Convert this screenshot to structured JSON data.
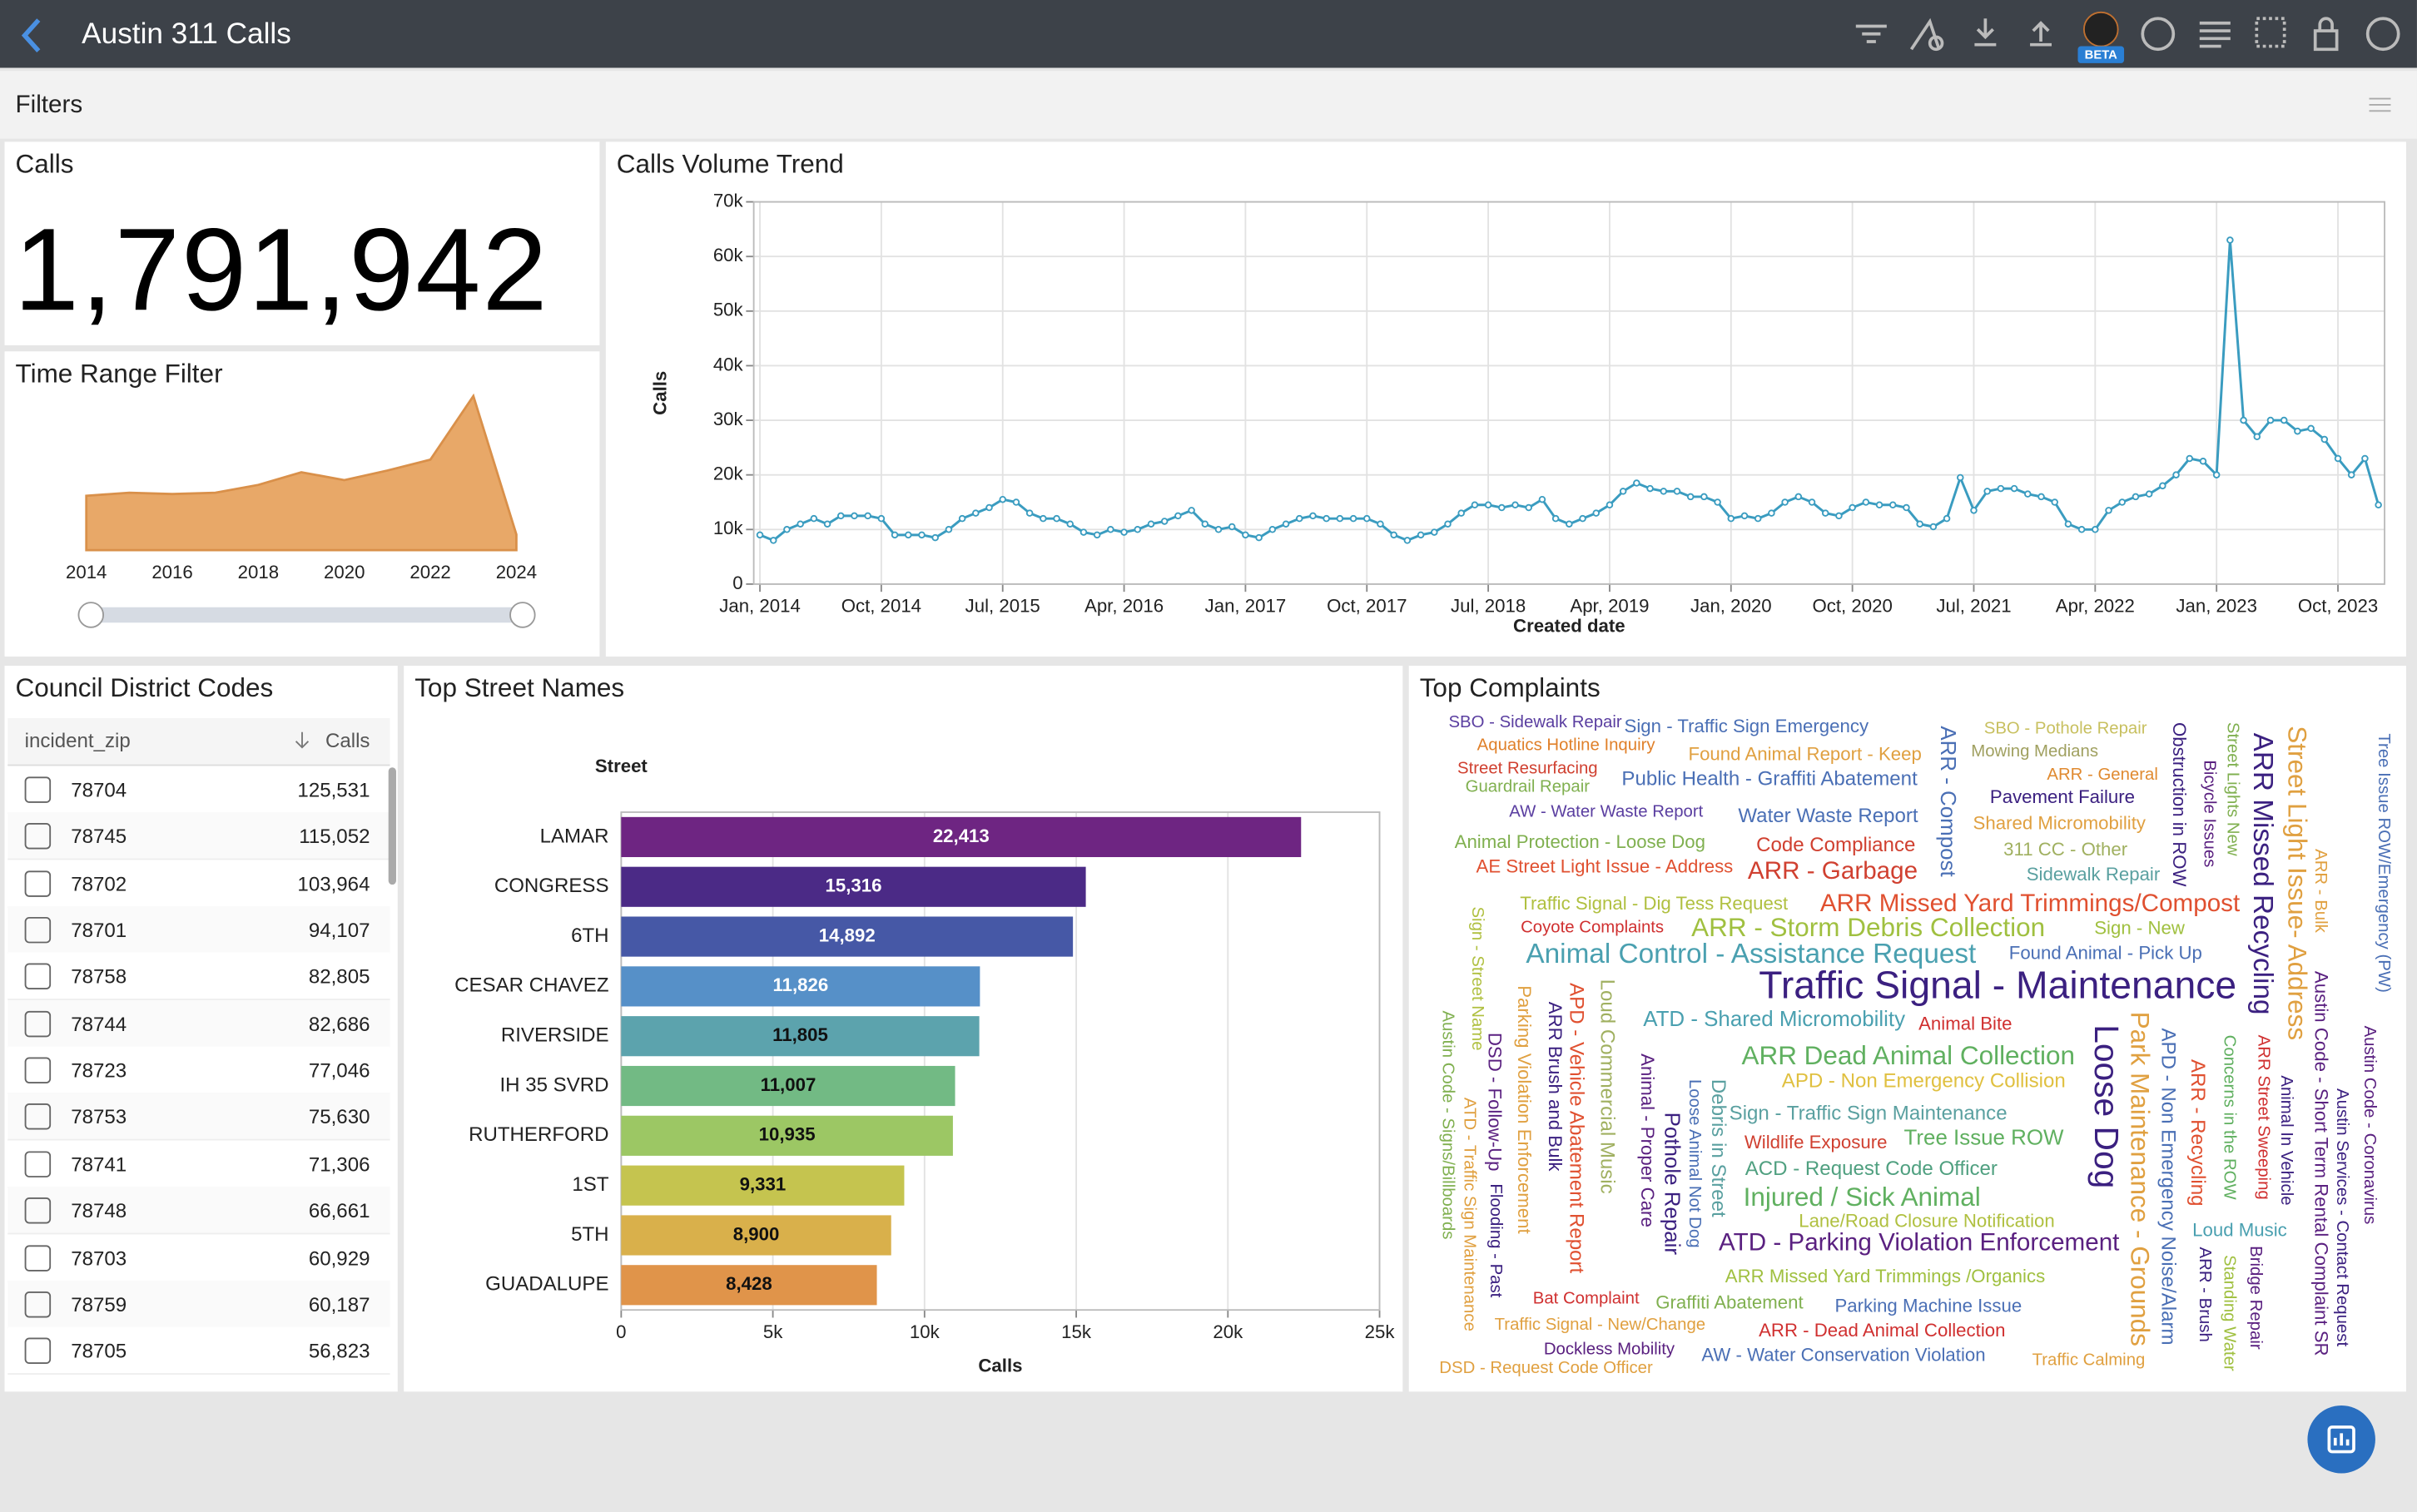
{
  "header": {
    "title": "Austin 311 Calls",
    "badge": "BETA"
  },
  "filters": {
    "title": "Filters"
  },
  "kpi": {
    "title": "Calls",
    "value": "1,791,942"
  },
  "table": {
    "title": "Council District Codes",
    "columns": [
      "incident_zip",
      "Calls"
    ],
    "rows": [
      [
        "78704",
        "125,531"
      ],
      [
        "78745",
        "115,052"
      ],
      [
        "78702",
        "103,964"
      ],
      [
        "78701",
        "94,107"
      ],
      [
        "78758",
        "82,805"
      ],
      [
        "78744",
        "82,686"
      ],
      [
        "78723",
        "77,046"
      ],
      [
        "78753",
        "75,630"
      ],
      [
        "78741",
        "71,306"
      ],
      [
        "78748",
        "66,661"
      ],
      [
        "78703",
        "60,929"
      ],
      [
        "78759",
        "60,187"
      ],
      [
        "78705",
        "56,823"
      ]
    ]
  },
  "chart_data": [
    {
      "type": "area",
      "title": "Time Range Filter",
      "color": "#e8a868",
      "x": [
        2014,
        2015,
        2016,
        2017,
        2018,
        2019,
        2020,
        2021,
        2022,
        2023,
        2024
      ],
      "values": [
        125000,
        132000,
        129000,
        132000,
        150000,
        179000,
        161000,
        183000,
        208000,
        354000,
        36000
      ],
      "xlim": [
        2014,
        2024
      ],
      "xticks": [
        2014,
        2016,
        2018,
        2020,
        2022,
        2024
      ]
    },
    {
      "type": "line",
      "title": "Calls Volume Trend",
      "x_label": "Created date",
      "y_label": "Calls",
      "color": "#3a9cc0",
      "grid": true,
      "x": [
        "2014-01",
        "2014-02",
        "2014-03",
        "2014-04",
        "2014-05",
        "2014-06",
        "2014-07",
        "2014-08",
        "2014-09",
        "2014-10",
        "2014-11",
        "2014-12",
        "2015-01",
        "2015-02",
        "2015-03",
        "2015-04",
        "2015-05",
        "2015-06",
        "2015-07",
        "2015-08",
        "2015-09",
        "2015-10",
        "2015-11",
        "2015-12",
        "2016-01",
        "2016-02",
        "2016-03",
        "2016-04",
        "2016-05",
        "2016-06",
        "2016-07",
        "2016-08",
        "2016-09",
        "2016-10",
        "2016-11",
        "2016-12",
        "2017-01",
        "2017-02",
        "2017-03",
        "2017-04",
        "2017-05",
        "2017-06",
        "2017-07",
        "2017-08",
        "2017-09",
        "2017-10",
        "2017-11",
        "2017-12",
        "2018-01",
        "2018-02",
        "2018-03",
        "2018-04",
        "2018-05",
        "2018-06",
        "2018-07",
        "2018-08",
        "2018-09",
        "2018-10",
        "2018-11",
        "2018-12",
        "2019-01",
        "2019-02",
        "2019-03",
        "2019-04",
        "2019-05",
        "2019-06",
        "2019-07",
        "2019-08",
        "2019-09",
        "2019-10",
        "2019-11",
        "2019-12",
        "2020-01",
        "2020-02",
        "2020-03",
        "2020-04",
        "2020-05",
        "2020-06",
        "2020-07",
        "2020-08",
        "2020-09",
        "2020-10",
        "2020-11",
        "2020-12",
        "2021-01",
        "2021-02",
        "2021-03",
        "2021-04",
        "2021-05",
        "2021-06",
        "2021-07",
        "2021-08",
        "2021-09",
        "2021-10",
        "2021-11",
        "2021-12",
        "2022-01",
        "2022-02",
        "2022-03",
        "2022-04",
        "2022-05",
        "2022-06",
        "2022-07",
        "2022-08",
        "2022-09",
        "2022-10",
        "2022-11",
        "2022-12",
        "2023-01",
        "2023-02",
        "2023-03",
        "2023-04",
        "2023-05",
        "2023-06",
        "2023-07",
        "2023-08",
        "2023-09",
        "2023-10",
        "2023-11",
        "2023-12",
        "2024-01"
      ],
      "values": [
        9000,
        8000,
        10000,
        11000,
        12000,
        11000,
        12500,
        12500,
        12500,
        12000,
        9000,
        9000,
        9000,
        8500,
        10000,
        12000,
        13000,
        14000,
        15500,
        15000,
        13000,
        12000,
        12000,
        11000,
        9500,
        9000,
        10000,
        9500,
        10000,
        11000,
        11500,
        12500,
        13500,
        11000,
        10000,
        10500,
        9000,
        8500,
        10000,
        11000,
        12000,
        12500,
        12000,
        12000,
        12000,
        12000,
        11000,
        9000,
        8000,
        9000,
        9500,
        11000,
        13000,
        14500,
        14500,
        14000,
        14500,
        14000,
        15500,
        12000,
        11000,
        12000,
        13000,
        14500,
        17000,
        18500,
        17500,
        17000,
        17000,
        16000,
        16000,
        15000,
        12000,
        12500,
        12000,
        13000,
        15000,
        16000,
        15000,
        13000,
        12500,
        14000,
        15000,
        14500,
        14500,
        14000,
        11000,
        10500,
        12000,
        19500,
        13500,
        17000,
        17500,
        17500,
        16500,
        16000,
        15000,
        11000,
        10000,
        10000,
        13500,
        15000,
        16000,
        16500,
        18000,
        20000,
        23000,
        22500,
        20000,
        63000,
        30000,
        27000,
        30000,
        30000,
        28000,
        28500,
        26500,
        23000,
        20000,
        23000,
        14500
      ],
      "ylim": [
        0,
        70000
      ],
      "yticks": [
        0,
        {
          "value": 10000,
          "label": "10k"
        },
        {
          "value": 20000,
          "label": "20k"
        },
        {
          "value": 30000,
          "label": "30k"
        },
        {
          "value": 40000,
          "label": "40k"
        },
        {
          "value": 50000,
          "label": "50k"
        },
        {
          "value": 60000,
          "label": "60k"
        },
        {
          "value": 70000,
          "label": "70k"
        }
      ],
      "xticks": [
        {
          "value": "2014-01",
          "label": "Jan, 2014"
        },
        {
          "value": "2014-10",
          "label": "Oct, 2014"
        },
        {
          "value": "2015-07",
          "label": "Jul, 2015"
        },
        {
          "value": "2016-04",
          "label": "Apr, 2016"
        },
        {
          "value": "2017-01",
          "label": "Jan, 2017"
        },
        {
          "value": "2017-10",
          "label": "Oct, 2017"
        },
        {
          "value": "2018-07",
          "label": "Jul, 2018"
        },
        {
          "value": "2019-04",
          "label": "Apr, 2019"
        },
        {
          "value": "2020-01",
          "label": "Jan, 2020"
        },
        {
          "value": "2020-10",
          "label": "Oct, 2020"
        },
        {
          "value": "2021-07",
          "label": "Jul, 2021"
        },
        {
          "value": "2022-04",
          "label": "Apr, 2022"
        },
        {
          "value": "2023-01",
          "label": "Jan, 2023"
        },
        {
          "value": "2023-10",
          "label": "Oct, 2023"
        }
      ]
    },
    {
      "type": "bar",
      "title": "Top Street Names",
      "y_label": "Street",
      "x_label": "Calls",
      "grid": true,
      "categories": [
        "LAMAR",
        "CONGRESS",
        "6TH",
        "CESAR CHAVEZ",
        "RIVERSIDE",
        "IH 35 SVRD",
        "RUTHERFORD",
        "1ST",
        "5TH",
        "GUADALUPE"
      ],
      "values": [
        22413,
        15316,
        14892,
        11826,
        11805,
        11007,
        10935,
        9331,
        8900,
        8428
      ],
      "value_labels": [
        "22,413",
        "15,316",
        "14,892",
        "11,826",
        "11,805",
        "11,007",
        "10,935",
        "9,331",
        "8,900",
        "8,428"
      ],
      "colors": [
        "#6e2582",
        "#4b2a86",
        "#4658a6",
        "#5690c8",
        "#5ca3ad",
        "#72ba84",
        "#9cc764",
        "#c5c44f",
        "#d9b04b",
        "#e0944a"
      ],
      "xlim": [
        0,
        25000
      ],
      "xticks": [
        0,
        {
          "value": 5000,
          "label": "5k"
        },
        {
          "value": 10000,
          "label": "10k"
        },
        {
          "value": 15000,
          "label": "15k"
        },
        {
          "value": 20000,
          "label": "20k"
        },
        {
          "value": 25000,
          "label": "25k"
        }
      ]
    }
  ],
  "word_cloud": {
    "title": "Top Complaints",
    "words": [
      {
        "text": "SBO - Sidewalk Repair",
        "color": "#5a3ea0"
      },
      {
        "text": "Sign - Traffic Sign Emergency",
        "color": "#4a6fb5"
      },
      {
        "text": "SBO - Pothole Repair",
        "color": "#c8c060"
      },
      {
        "text": "Aquatics Hotline Inquiry",
        "color": "#e0802a"
      },
      {
        "text": "Found Animal Report - Keep",
        "color": "#e0a040"
      },
      {
        "text": "Mowing Medians",
        "color": "#a0a060"
      },
      {
        "text": "Street Resurfacing",
        "color": "#d04030"
      },
      {
        "text": "Public Health - Graffiti Abatement",
        "color": "#4a6fb5"
      },
      {
        "text": "ARR - General",
        "color": "#e08a30"
      },
      {
        "text": "Guardrail Repair",
        "color": "#80b050"
      },
      {
        "text": "Pavement Failure",
        "color": "#3b2080"
      },
      {
        "text": "AW - Water Waste Report",
        "color": "#5a3ea0"
      },
      {
        "text": "Water Waste Report",
        "color": "#4a6fb5"
      },
      {
        "text": "Shared Micromobility",
        "color": "#e0a040"
      },
      {
        "text": "Animal Protection - Loose Dog",
        "color": "#80b050"
      },
      {
        "text": "Code Compliance",
        "color": "#d04030"
      },
      {
        "text": "311 CC - Other",
        "color": "#a0b060"
      },
      {
        "text": "AE Street Light Issue - Address",
        "color": "#e05030"
      },
      {
        "text": "ARR - Garbage",
        "color": "#d04030"
      },
      {
        "text": "Sidewalk Repair",
        "color": "#5aa0a0"
      },
      {
        "text": "Traffic Signal - Dig Tess Request",
        "color": "#b0c040"
      },
      {
        "text": "ARR Missed Yard Trimmings/Compost",
        "color": "#e05030"
      },
      {
        "text": "Coyote Complaints",
        "color": "#d03030"
      },
      {
        "text": "ARR - Storm Debris Collection",
        "color": "#a0c040"
      },
      {
        "text": "Sign - New",
        "color": "#a0c040"
      },
      {
        "text": "Animal Control - Assistance Request",
        "color": "#4aa0b0"
      },
      {
        "text": "Found Animal - Pick Up",
        "color": "#4a6fb5"
      },
      {
        "text": "Traffic Signal - Maintenance",
        "color": "#3b2080"
      },
      {
        "text": "ATD - Shared Micromobility",
        "color": "#4aa0b0"
      },
      {
        "text": "Animal Bite",
        "color": "#d03030"
      },
      {
        "text": "ARR Dead Animal Collection",
        "color": "#60b060"
      },
      {
        "text": "APD - Non Emergency Collision",
        "color": "#e0c040"
      },
      {
        "text": "Sign - Traffic Sign Maintenance",
        "color": "#5aa0a0"
      },
      {
        "text": "Wildlife Exposure",
        "color": "#d04030"
      },
      {
        "text": "Tree Issue ROW",
        "color": "#60b060"
      },
      {
        "text": "ACD - Request Code Officer",
        "color": "#50a080"
      },
      {
        "text": "Injured / Sick Animal",
        "color": "#60b060"
      },
      {
        "text": "Lane/Road Closure Notification",
        "color": "#b0c040"
      },
      {
        "text": "ATD - Parking Violation Enforcement",
        "color": "#5a2080"
      },
      {
        "text": "Loud Music",
        "color": "#4aa0b0"
      },
      {
        "text": "ARR Missed Yard Trimmings /Organics",
        "color": "#a0c040"
      },
      {
        "text": "Bat Complaint",
        "color": "#d03030"
      },
      {
        "text": "Graffiti Abatement",
        "color": "#80b050"
      },
      {
        "text": "Parking Machine Issue",
        "color": "#4a6fb5"
      },
      {
        "text": "Traffic Signal - New/Change",
        "color": "#e0a040"
      },
      {
        "text": "ARR - Dead Animal Collection",
        "color": "#d03030"
      },
      {
        "text": "Dockless Mobility",
        "color": "#5a2080"
      },
      {
        "text": "AW - Water Conservation Violation",
        "color": "#4a6fb5"
      },
      {
        "text": "DSD - Request Code Officer",
        "color": "#e0a040"
      },
      {
        "text": "Traffic Calming",
        "color": "#e0a040"
      },
      {
        "text": "ARR - Compost",
        "color": "#4a6fb5"
      },
      {
        "text": "Obstruction in ROW",
        "color": "#3b2080"
      },
      {
        "text": "Street Lights New",
        "color": "#80b050"
      },
      {
        "text": "Bicycle Issues",
        "color": "#5a2080"
      },
      {
        "text": "ARR Missed Recycling",
        "color": "#3b2080"
      },
      {
        "text": "Street Light Issue- Address",
        "color": "#e0a040"
      },
      {
        "text": "ARR - Bulk",
        "color": "#e0a040"
      },
      {
        "text": "Tree Issue ROW/Emergency (PW)",
        "color": "#4a6fb5"
      },
      {
        "text": "Sign - Street Name",
        "color": "#b0c040"
      },
      {
        "text": "Austin Code - Signs/Billboards",
        "color": "#80b050"
      },
      {
        "text": "ATD - Traffic Sign Maintenance",
        "color": "#e0a040"
      },
      {
        "text": "DSD - Follow-Up",
        "color": "#5a2080"
      },
      {
        "text": "Flooding - Past",
        "color": "#3b2080"
      },
      {
        "text": "Parking Violation Enforcement",
        "color": "#e0a040"
      },
      {
        "text": "ARR Brush and Bulk",
        "color": "#3b2080"
      },
      {
        "text": "APD - Vehicle Abatement Report",
        "color": "#e05030"
      },
      {
        "text": "Loud Commercial Music",
        "color": "#a0b060"
      },
      {
        "text": "Animal - Proper Care",
        "color": "#5a2080"
      },
      {
        "text": "Pothole Repair",
        "color": "#3b2080"
      },
      {
        "text": "Loose Animal Not Dog",
        "color": "#4a6fb5"
      },
      {
        "text": "Debris in Street",
        "color": "#5aa0a0"
      },
      {
        "text": "Loose Dog",
        "color": "#3b2080"
      },
      {
        "text": "Park Maintenance - Grounds",
        "color": "#e0a040"
      },
      {
        "text": "APD - Non Emergency Noise/Alarm",
        "color": "#4a6fb5"
      },
      {
        "text": "ARR - Recycling",
        "color": "#e05030"
      },
      {
        "text": "Concerns in the ROW",
        "color": "#60b060"
      },
      {
        "text": "ARR Street Sweeping",
        "color": "#d03030"
      },
      {
        "text": "ARR - Brush",
        "color": "#3b2080"
      },
      {
        "text": "Standing Water",
        "color": "#a0c040"
      },
      {
        "text": "Bridge Repair",
        "color": "#5a2080"
      },
      {
        "text": "Animal In Vehicle",
        "color": "#3b2080"
      },
      {
        "text": "Austin Code - Short Term Rental Complaint SR",
        "color": "#5a2080"
      },
      {
        "text": "Austin Services - Contact Request",
        "color": "#3b2080"
      },
      {
        "text": "Austin Code - Coronavirus",
        "color": "#5a2080"
      }
    ]
  }
}
